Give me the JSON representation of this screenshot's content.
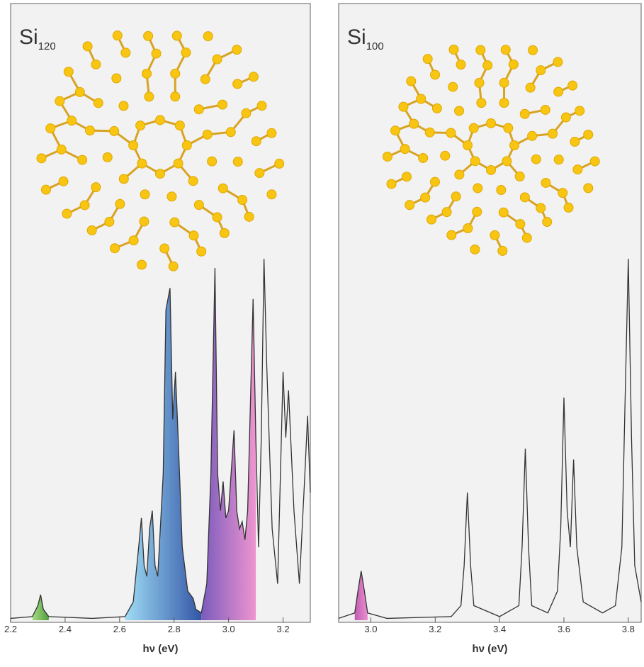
{
  "chart_data": [
    {
      "type": "line",
      "title": "Si",
      "title_subscript": "120",
      "xlabel": "hν (eV)",
      "x": [
        2.2,
        2.28,
        2.3,
        2.31,
        2.32,
        2.34,
        2.5,
        2.62,
        2.65,
        2.67,
        2.68,
        2.69,
        2.7,
        2.71,
        2.72,
        2.73,
        2.74,
        2.76,
        2.77,
        2.78,
        2.785,
        2.795,
        2.805,
        2.815,
        2.83,
        2.85,
        2.87,
        2.88,
        2.9,
        2.92,
        2.935,
        2.95,
        2.96,
        2.97,
        2.98,
        2.99,
        3.0,
        3.02,
        3.03,
        3.04,
        3.05,
        3.06,
        3.07,
        3.09,
        3.1,
        3.11,
        3.12,
        3.13,
        3.14,
        3.16,
        3.18,
        3.2,
        3.21,
        3.22,
        3.24,
        3.26,
        3.28,
        3.29,
        3.3
      ],
      "values": [
        0.005,
        0.01,
        0.04,
        0.07,
        0.03,
        0.01,
        0.005,
        0.01,
        0.05,
        0.2,
        0.28,
        0.15,
        0.12,
        0.25,
        0.3,
        0.15,
        0.12,
        0.4,
        0.85,
        0.89,
        0.91,
        0.55,
        0.68,
        0.5,
        0.2,
        0.08,
        0.06,
        0.03,
        0.02,
        0.1,
        0.4,
        0.965,
        0.4,
        0.3,
        0.38,
        0.28,
        0.3,
        0.52,
        0.3,
        0.25,
        0.27,
        0.22,
        0.3,
        0.88,
        0.5,
        0.2,
        0.5,
        0.99,
        0.7,
        0.25,
        0.1,
        0.68,
        0.5,
        0.63,
        0.3,
        0.1,
        0.4,
        0.56,
        0.35
      ],
      "color": "#333333",
      "fills": [
        {
          "from": 2.28,
          "to": 2.34,
          "colors": [
            "#a9dc86",
            "#4f9e3c"
          ]
        },
        {
          "from": 2.62,
          "to": 2.9,
          "colors": [
            "#9fdcf5",
            "#3356a6"
          ]
        },
        {
          "from": 2.9,
          "to": 3.1,
          "colors": [
            "#7a5bbd",
            "#ee95cf"
          ]
        }
      ],
      "xlim": [
        2.2,
        3.3
      ],
      "ylim": [
        0,
        1
      ],
      "xticks": [
        2.2,
        2.4,
        2.6,
        2.8,
        {
          "value": 3,
          "label": "3.0"
        },
        3.2
      ]
    },
    {
      "type": "line",
      "title": "Si",
      "title_subscript": "100",
      "xlabel": "hν (eV)",
      "x": [
        2.9,
        2.95,
        2.96,
        2.97,
        2.98,
        2.99,
        3.05,
        3.25,
        3.28,
        3.29,
        3.3,
        3.31,
        3.32,
        3.4,
        3.46,
        3.47,
        3.48,
        3.49,
        3.5,
        3.55,
        3.58,
        3.59,
        3.6,
        3.61,
        3.62,
        3.63,
        3.64,
        3.66,
        3.72,
        3.76,
        3.78,
        3.79,
        3.8,
        3.81,
        3.82,
        3.84
      ],
      "values": [
        0.005,
        0.02,
        0.08,
        0.135,
        0.08,
        0.02,
        0.005,
        0.01,
        0.04,
        0.15,
        0.35,
        0.15,
        0.04,
        0.01,
        0.04,
        0.2,
        0.47,
        0.2,
        0.04,
        0.02,
        0.08,
        0.25,
        0.61,
        0.3,
        0.2,
        0.44,
        0.2,
        0.05,
        0.02,
        0.04,
        0.2,
        0.6,
        0.99,
        0.5,
        0.15,
        0.05
      ],
      "color": "#333333",
      "fills": [
        {
          "from": 2.95,
          "to": 2.99,
          "colors": [
            "#c25bb0",
            "#e98fd0"
          ]
        }
      ],
      "xlim": [
        2.9,
        3.84
      ],
      "ylim": [
        0,
        1
      ],
      "xticks": [
        {
          "value": 3,
          "label": "3.0"
        },
        3.2,
        3.4,
        3.6,
        3.8
      ]
    }
  ]
}
